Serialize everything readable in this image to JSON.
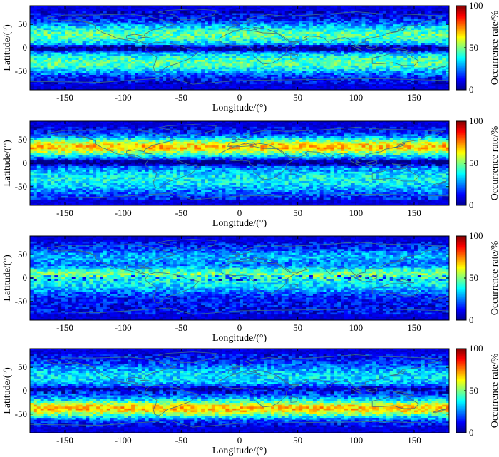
{
  "chart_data": [
    {
      "type": "heatmap",
      "xlabel": "Longitude/(°)",
      "ylabel": "Latitude/(°)",
      "colorbar_label": "Occurrence rate/%",
      "xlim": [
        -180,
        180
      ],
      "ylim": [
        -90,
        90
      ],
      "xticks": [
        -150,
        -100,
        -50,
        0,
        50,
        100,
        150
      ],
      "yticks": [
        -50,
        0,
        50
      ],
      "clim": [
        0,
        100
      ],
      "colorbar_ticks": [
        0,
        50,
        100
      ],
      "colormap": "jet",
      "overlay": "coastlines",
      "dominant_band": "northern mid-latitudes and southern mid-latitudes ~40-60%",
      "equatorial_band": "low 10-30%"
    },
    {
      "type": "heatmap",
      "xlabel": "Longitude/(°)",
      "ylabel": "Latitude/(°)",
      "colorbar_label": "Occurrence rate/%",
      "xlim": [
        -180,
        180
      ],
      "ylim": [
        -90,
        90
      ],
      "xticks": [
        -150,
        -100,
        -50,
        0,
        50,
        100,
        150
      ],
      "yticks": [
        -50,
        0,
        50
      ],
      "clim": [
        0,
        100
      ],
      "colorbar_ticks": [
        0,
        50,
        100
      ],
      "colormap": "jet",
      "overlay": "coastlines",
      "dominant_band": "northern mid-latitudes 30-50N up to ~75%",
      "equatorial_band": "low 10-30%"
    },
    {
      "type": "heatmap",
      "xlabel": "Longitude/(°)",
      "ylabel": "Latitude/(°)",
      "colorbar_label": "Occurrence rate/%",
      "xlim": [
        -180,
        180
      ],
      "ylim": [
        -90,
        90
      ],
      "xticks": [
        -150,
        -100,
        -50,
        0,
        50,
        100,
        150
      ],
      "yticks": [
        -50,
        0,
        50
      ],
      "clim": [
        0,
        100
      ],
      "colorbar_ticks": [
        0,
        50,
        100
      ],
      "colormap": "jet",
      "overlay": "coastlines",
      "dominant_band": "tropics ~10N-10S up to ~60%, mixed with low cells",
      "equatorial_band": "alternating high and low"
    },
    {
      "type": "heatmap",
      "xlabel": "Longitude/(°)",
      "ylabel": "Latitude/(°)",
      "colorbar_label": "Occurrence rate/%",
      "xlim": [
        -180,
        180
      ],
      "ylim": [
        -90,
        90
      ],
      "xticks": [
        -150,
        -100,
        -50,
        0,
        50,
        100,
        150
      ],
      "yticks": [
        -50,
        0,
        50
      ],
      "clim": [
        0,
        100
      ],
      "colorbar_ticks": [
        0,
        50,
        100
      ],
      "colormap": "jet",
      "overlay": "coastlines",
      "dominant_band": "southern mid-latitudes 30-50S up to ~75%",
      "equatorial_band": "low 10-30%"
    }
  ]
}
